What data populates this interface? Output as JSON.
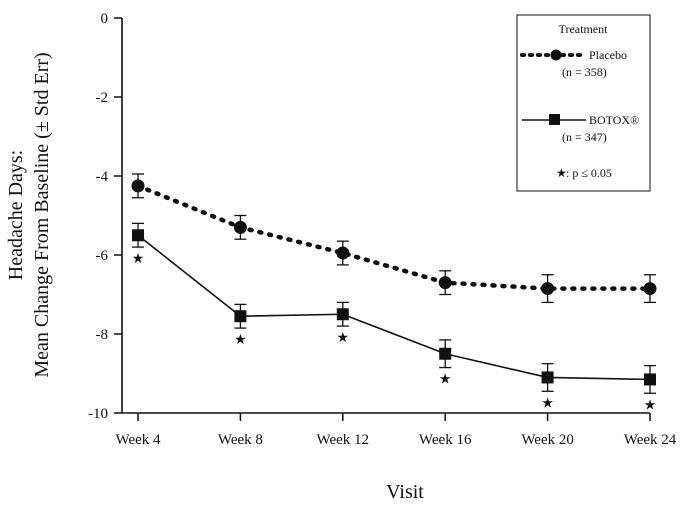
{
  "chart_data": {
    "type": "line",
    "xlabel": "Visit",
    "ylabel_line1": "Headache Days:",
    "ylabel_line2": "Mean Change From Baseline (± Std Err)",
    "categories": [
      "Week 4",
      "Week 8",
      "Week 12",
      "Week 16",
      "Week 20",
      "Week 24"
    ],
    "ylim": [
      -10,
      0
    ],
    "yticks": [
      "0",
      "-2",
      "-4",
      "-6",
      "-8",
      "-10"
    ],
    "grid": false,
    "legend": {
      "placement": "top-right",
      "title": "Treatment",
      "note": ": p ≤ 0.05",
      "note_symbol": "★"
    },
    "series": [
      {
        "name": "Placebo",
        "n_label": "(n = 358)",
        "style": "dotted",
        "marker": "circle",
        "values": [
          -4.25,
          -5.3,
          -5.95,
          -6.7,
          -6.85,
          -6.85
        ],
        "errors": [
          0.3,
          0.3,
          0.3,
          0.3,
          0.35,
          0.35
        ]
      },
      {
        "name": "BOTOX®",
        "n_label": "(n = 347)",
        "style": "solid",
        "marker": "square",
        "values": [
          -5.5,
          -7.55,
          -7.5,
          -8.5,
          -9.1,
          -9.15
        ],
        "errors": [
          0.3,
          0.3,
          0.3,
          0.35,
          0.35,
          0.35
        ],
        "significant": [
          true,
          true,
          true,
          true,
          true,
          true
        ]
      }
    ],
    "color": "#111111"
  }
}
